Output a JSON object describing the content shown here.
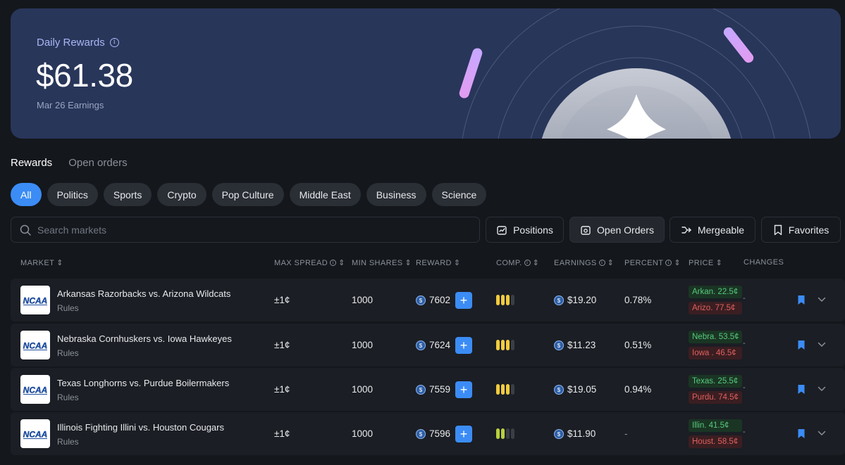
{
  "hero": {
    "title": "Daily Rewards",
    "amount": "$61.38",
    "subtitle": "Mar 26 Earnings"
  },
  "tabs": [
    {
      "label": "Rewards",
      "active": true
    },
    {
      "label": "Open orders",
      "active": false
    }
  ],
  "categories": [
    "All",
    "Politics",
    "Sports",
    "Crypto",
    "Pop Culture",
    "Middle East",
    "Business",
    "Science"
  ],
  "search": {
    "placeholder": "Search markets"
  },
  "toolbar": {
    "positions": "Positions",
    "open_orders": "Open Orders",
    "mergeable": "Mergeable",
    "favorites": "Favorites"
  },
  "columns": {
    "market": "MARKET",
    "max_spread": "MAX SPREAD",
    "min_shares": "MIN SHARES",
    "reward": "REWARD",
    "comp": "COMP.",
    "earnings": "EARNINGS",
    "percent": "PERCENT",
    "price": "PRICE",
    "changes": "CHANGES"
  },
  "rows": [
    {
      "logo": "NCAA",
      "market": "Arkansas Razorbacks vs. Arizona Wildcats",
      "rules": "Rules",
      "max_spread": "±1¢",
      "min_shares": "1000",
      "reward": "7602",
      "competition_level": 3,
      "competition_color": "#f2cc3e",
      "earnings": "$19.20",
      "percent": "0.78%",
      "price_yes": "Arkan. 22.5¢",
      "price_no": "Arizo. 77.5¢",
      "change": "-"
    },
    {
      "logo": "NCAA",
      "market": "Nebraska Cornhuskers vs. Iowa Hawkeyes",
      "rules": "Rules",
      "max_spread": "±1¢",
      "min_shares": "1000",
      "reward": "7624",
      "competition_level": 3,
      "competition_color": "#f2cc3e",
      "earnings": "$11.23",
      "percent": "0.51%",
      "price_yes": "Nebra. 53.5¢",
      "price_no": "Iowa . 46.5¢",
      "change": "-"
    },
    {
      "logo": "NCAA",
      "market": "Texas Longhorns vs. Purdue Boilermakers",
      "rules": "Rules",
      "max_spread": "±1¢",
      "min_shares": "1000",
      "reward": "7559",
      "competition_level": 3,
      "competition_color": "#f2cc3e",
      "earnings": "$19.05",
      "percent": "0.94%",
      "price_yes": "Texas. 25.5¢",
      "price_no": "Purdu. 74.5¢",
      "change": "-"
    },
    {
      "logo": "NCAA",
      "market": "Illinois Fighting Illini vs. Houston Cougars",
      "rules": "Rules",
      "max_spread": "±1¢",
      "min_shares": "1000",
      "reward": "7596",
      "competition_level": 2,
      "competition_color": "#b9d03d",
      "earnings": "$11.90",
      "percent": "-",
      "price_yes": "Illin. 41.5¢",
      "price_no": "Houst. 58.5¢",
      "change": "-"
    }
  ]
}
